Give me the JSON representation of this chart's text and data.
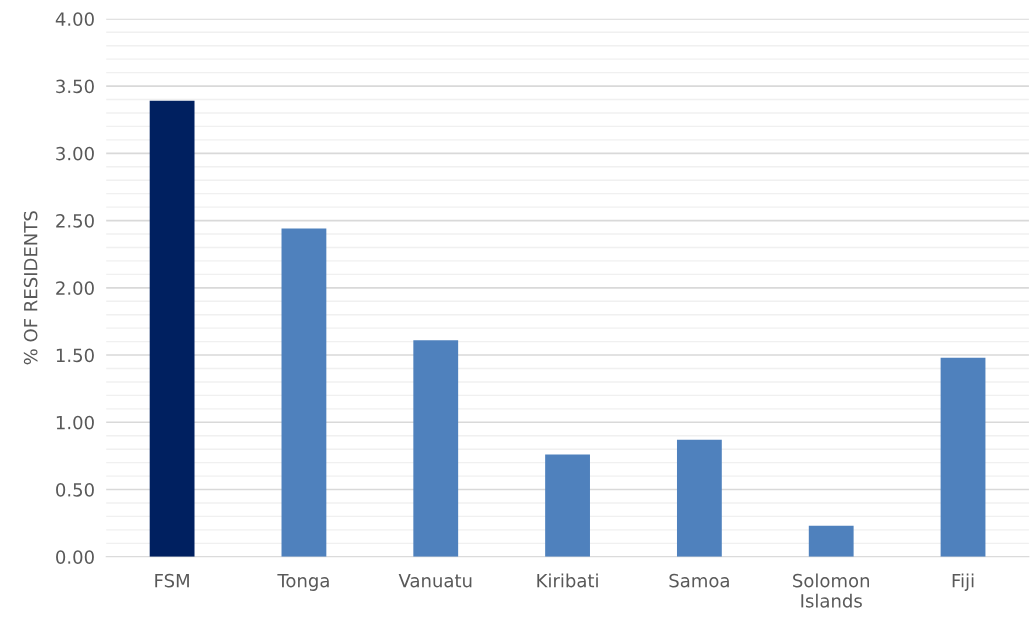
{
  "chart_data": {
    "type": "bar",
    "ylabel": "% OF RESIDENTS",
    "categories": [
      "FSM",
      "Tonga",
      "Vanuatu",
      "Kiribati",
      "Samoa",
      "Solomon\nIslands",
      "Fiji"
    ],
    "values": [
      3.39,
      2.44,
      1.61,
      0.76,
      0.87,
      0.23,
      1.48
    ],
    "colors": [
      "#002060",
      "#4f81bd",
      "#4f81bd",
      "#4f81bd",
      "#4f81bd",
      "#4f81bd",
      "#4f81bd"
    ],
    "ylim": [
      0,
      4
    ],
    "yticks": [
      "0.00",
      {
        "value": 0.1,
        "label": null
      },
      {
        "value": 0.2,
        "label": null
      },
      {
        "value": 0.3,
        "label": null
      },
      {
        "value": 0.4,
        "label": null
      },
      {
        "value": 0.5,
        "label": "0.50"
      },
      {
        "value": 0.6,
        "label": null
      },
      {
        "value": 0.7,
        "label": null
      },
      {
        "value": 0.8,
        "label": null
      },
      {
        "value": 0.9,
        "label": null
      },
      {
        "value": 1.0,
        "label": "1.00"
      },
      {
        "value": 1.1,
        "label": null
      },
      {
        "value": 1.2,
        "label": null
      },
      {
        "value": 1.3,
        "label": null
      },
      {
        "value": 1.4,
        "label": null
      },
      {
        "value": 1.5,
        "label": "1.50"
      },
      {
        "value": 1.6,
        "label": null
      },
      {
        "value": 1.7,
        "label": null
      },
      {
        "value": 1.8,
        "label": null
      },
      {
        "value": 1.9,
        "label": null
      },
      {
        "value": 2.0,
        "label": "2.00"
      },
      {
        "value": 2.1,
        "label": null
      },
      {
        "value": 2.2,
        "label": null
      },
      {
        "value": 2.3,
        "label": null
      },
      {
        "value": 2.4,
        "label": null
      },
      {
        "value": 2.5,
        "label": "2.50"
      },
      {
        "value": 2.6,
        "label": null
      },
      {
        "value": 2.7,
        "label": null
      },
      {
        "value": 2.8,
        "label": null
      },
      {
        "value": 2.9,
        "label": null
      },
      {
        "value": 3.0,
        "label": "3.00"
      },
      {
        "value": 3.1,
        "label": null
      },
      {
        "value": 3.2,
        "label": null
      },
      {
        "value": 3.3,
        "label": null
      },
      {
        "value": 3.4,
        "label": null
      },
      {
        "value": 3.5,
        "label": "3.50"
      },
      {
        "value": 3.6,
        "label": null
      },
      {
        "value": 3.7,
        "label": null
      },
      {
        "value": 3.8,
        "label": null
      },
      {
        "value": 3.9,
        "label": null
      },
      {
        "value": 4.0,
        "label": "4.00"
      }
    ],
    "grid": "y"
  }
}
